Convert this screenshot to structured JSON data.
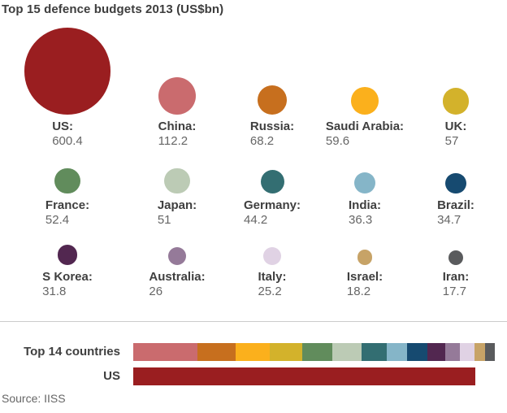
{
  "title": "Top 15 defence budgets 2013 (US$bn)",
  "source": "Source: IISS",
  "comparison": {
    "top14_label": "Top 14 countries",
    "us_label": "US"
  },
  "chart_data": {
    "type": "bubble",
    "subtype": "proportional-area-circles-with-stacked-bar-comparison",
    "title": "Top 15 defence budgets 2013 (US$bn)",
    "unit": "US$bn",
    "layout": {
      "rows": 3,
      "cols": 5
    },
    "countries": [
      {
        "label": "US:",
        "value": "600.4",
        "color": "#9a1e20"
      },
      {
        "label": "China:",
        "value": "112.2",
        "color": "#ca6b6e"
      },
      {
        "label": "Russia:",
        "value": "68.2",
        "color": "#c76f1e"
      },
      {
        "label": "Saudi Arabia:",
        "value": "59.6",
        "color": "#fbb01c"
      },
      {
        "label": "UK:",
        "value": "57",
        "color": "#d3b22b"
      },
      {
        "label": "France:",
        "value": "52.4",
        "color": "#618c5c"
      },
      {
        "label": "Japan:",
        "value": "51",
        "color": "#bccbb5"
      },
      {
        "label": "Germany:",
        "value": "44.2",
        "color": "#336e72"
      },
      {
        "label": "India:",
        "value": "36.3",
        "color": "#85b5c8"
      },
      {
        "label": "Brazil:",
        "value": "34.7",
        "color": "#164a70"
      },
      {
        "label": "S Korea:",
        "value": "31.8",
        "color": "#522750"
      },
      {
        "label": "Australia:",
        "value": "26",
        "color": "#957a99"
      },
      {
        "label": "Italy:",
        "value": "25.2",
        "color": "#e0d2e4"
      },
      {
        "label": "Israel:",
        "value": "18.2",
        "color": "#c7a367"
      },
      {
        "label": "Iran:",
        "value": "17.7",
        "color": "#5a5b5d"
      }
    ],
    "comparison_bars": {
      "top14_total": 634.5,
      "us_total": 600.4,
      "note": "stacked bar of the 14 non-US countries vs single US bar, same scale"
    }
  }
}
